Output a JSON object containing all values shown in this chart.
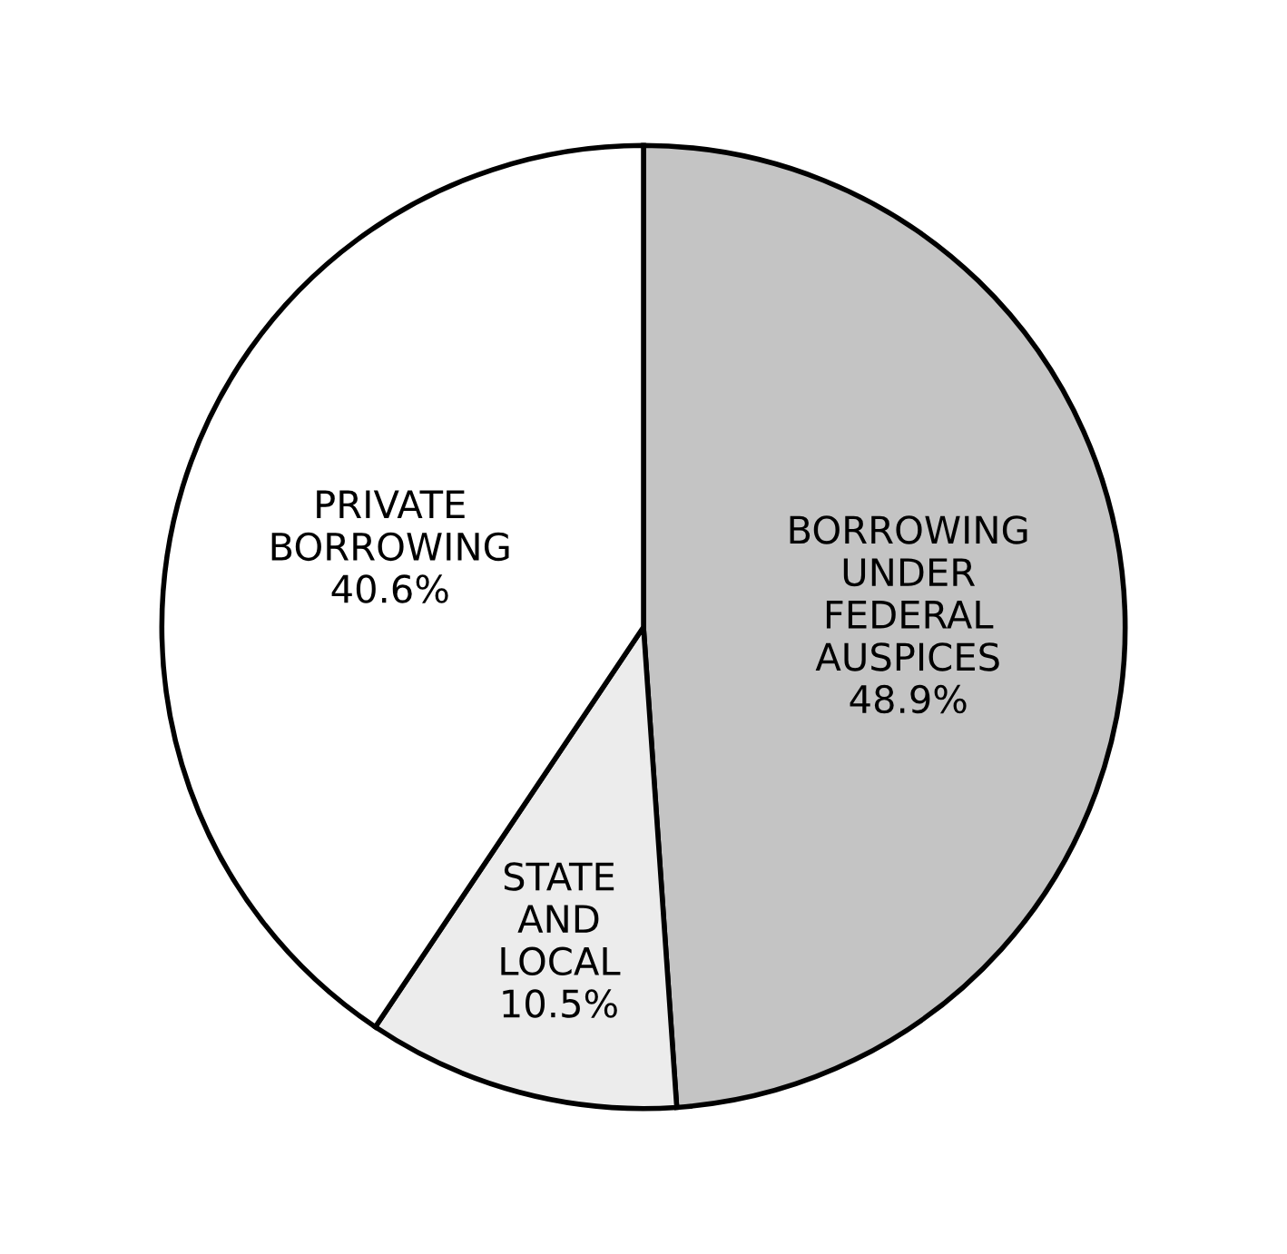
{
  "chart_data": {
    "type": "pie",
    "categories": [
      "BORROWING\nUNDER\nFEDERAL\nAUSPICES",
      "STATE\nAND\nLOCAL",
      "PRIVATE\nBORROWING"
    ],
    "values": [
      48.9,
      10.5,
      40.6
    ],
    "value_labels": [
      "48.9%",
      "10.5%",
      "40.6%"
    ],
    "colors": [
      "#c4c4c4",
      "#ececec",
      "#ffffff"
    ]
  }
}
